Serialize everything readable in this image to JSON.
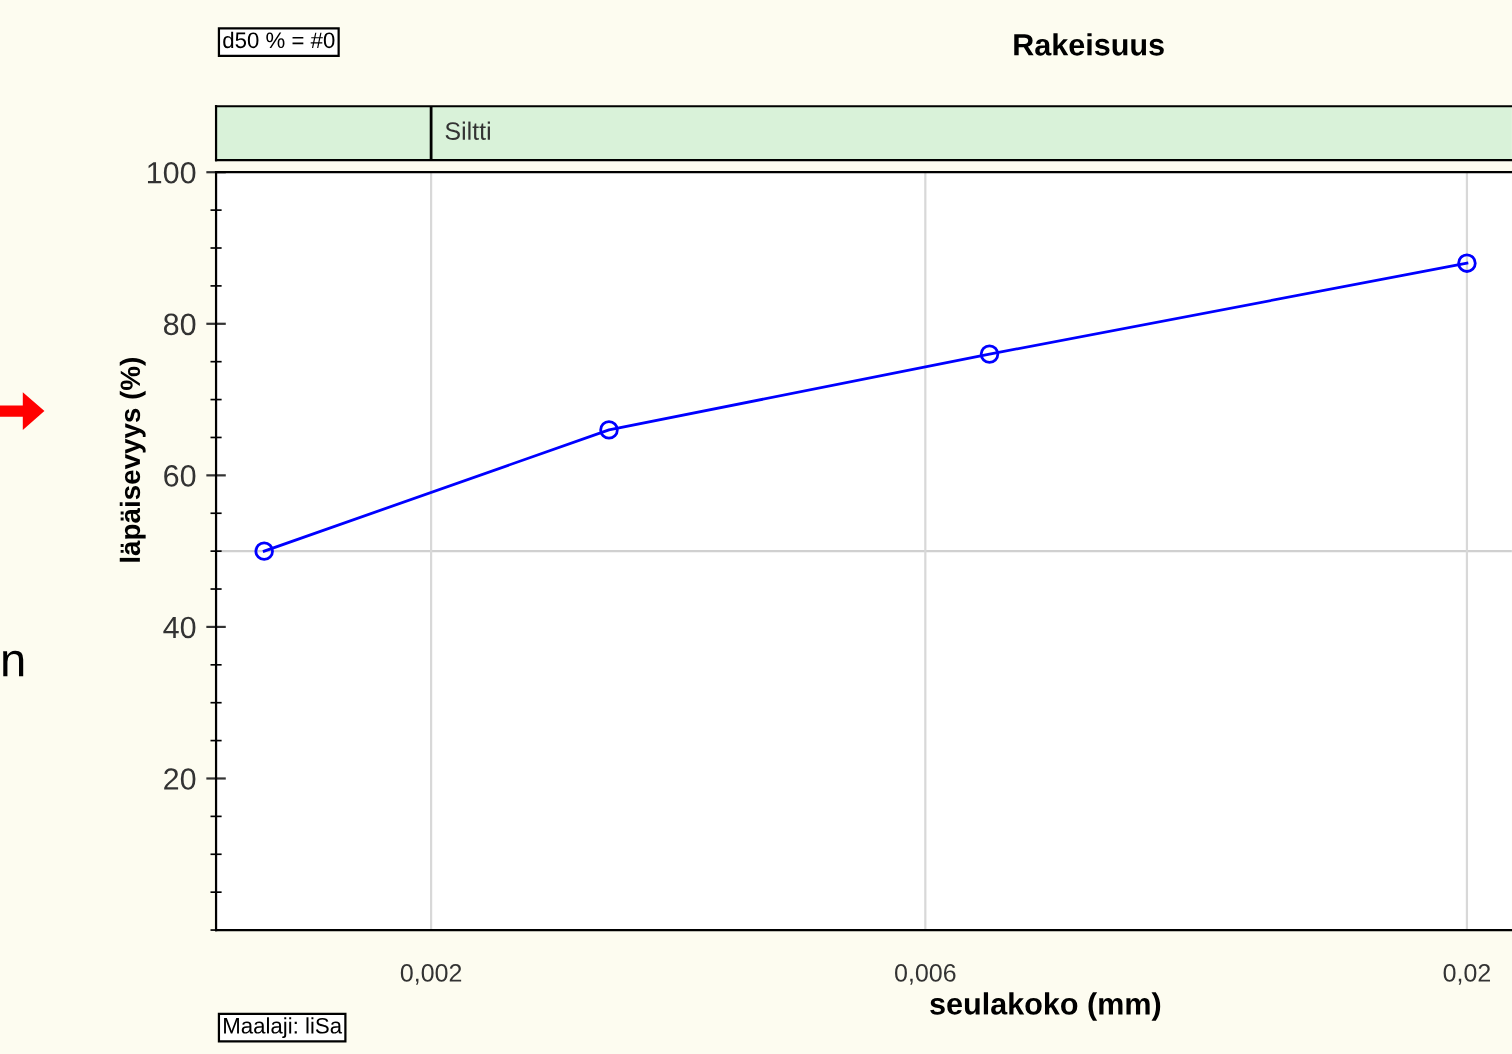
{
  "chart_data": {
    "type": "line",
    "title": "Rakeisuus",
    "xlabel": "seulakoko (mm)",
    "ylabel": "läpäisevyys (%)",
    "x": [
      0.00138,
      0.00297,
      0.00692,
      0.02
    ],
    "series": [
      {
        "color": "#0000ff",
        "values": [
          50,
          66,
          76,
          88
        ]
      }
    ],
    "log": "x",
    "xlim": [
      0.00124,
      0.0221
    ],
    "ylim": [
      0,
      100
    ],
    "xticks": [
      {
        "value": 0.002,
        "label": "0,002"
      },
      {
        "value": 0.006,
        "label": "0,006"
      },
      {
        "value": 0.02,
        "label": "0,02"
      }
    ],
    "yticks": [
      20,
      40,
      60,
      80,
      100
    ],
    "grid": "x",
    "marker": "circle",
    "line_style": "solid",
    "legend": false,
    "ref_lines": [
      {
        "axis": "y",
        "value": 50,
        "color": "#d0d0d0"
      },
      {
        "axis": "x",
        "value": 0.002,
        "label": "Siltti",
        "color": "#000000"
      }
    ],
    "annotations": [
      "d50 % = #0",
      "Maalaji: liSa",
      "n"
    ]
  }
}
